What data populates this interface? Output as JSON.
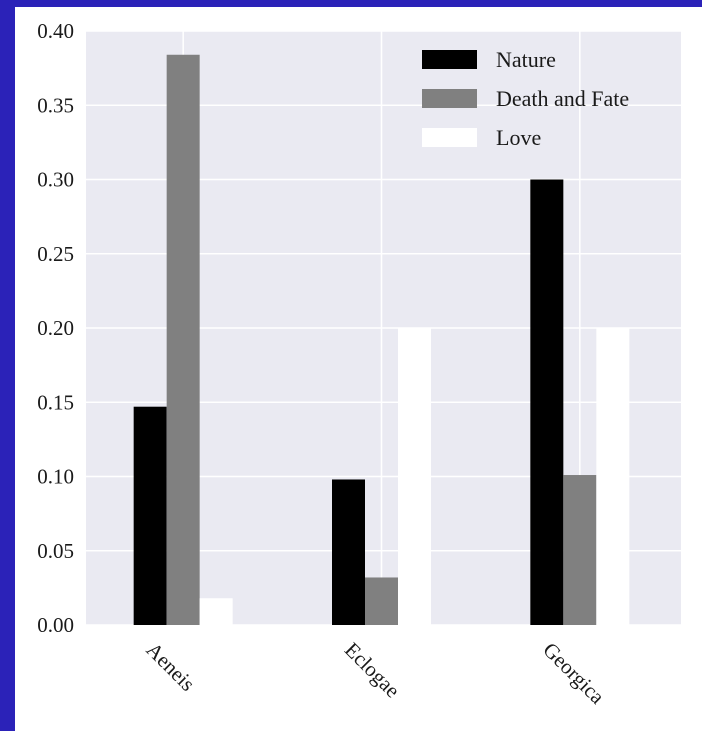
{
  "chart_data": {
    "type": "bar",
    "title": "",
    "xlabel": "",
    "ylabel": "",
    "categories": [
      "Aeneis",
      "Eclogae",
      "Georgica"
    ],
    "series": [
      {
        "name": "Nature",
        "color": "#000000",
        "values": [
          0.147,
          0.098,
          0.3
        ]
      },
      {
        "name": "Death and Fate",
        "color": "#808080",
        "values": [
          0.384,
          0.032,
          0.101
        ]
      },
      {
        "name": "Love",
        "color": "#ffffff",
        "values": [
          0.018,
          0.2,
          0.2
        ]
      }
    ],
    "ylim": [
      0,
      0.4
    ],
    "yticks": [
      "0.00",
      "0.05",
      "0.10",
      "0.15",
      "0.20",
      "0.25",
      "0.30",
      "0.35",
      "0.40"
    ],
    "grid": true,
    "legend_position": "top-right",
    "plot_background": "#eaeaf2",
    "grid_color": "#ffffff"
  }
}
